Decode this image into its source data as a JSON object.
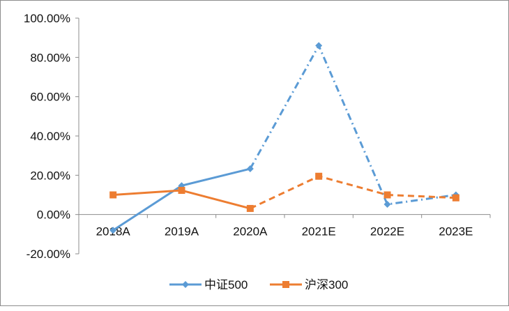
{
  "chart_data": {
    "type": "line",
    "title": "",
    "xlabel": "",
    "ylabel": "",
    "categories": [
      "2018A",
      "2019A",
      "2020A",
      "2021E",
      "2022E",
      "2023E"
    ],
    "ylim": [
      -20,
      100
    ],
    "yticks": [
      -20,
      0,
      20,
      40,
      60,
      80,
      100
    ],
    "ytick_labels": [
      "-20.00%",
      "0.00%",
      "20.00%",
      "40.00%",
      "60.00%",
      "80.00%",
      "100.00%"
    ],
    "grid": false,
    "legend_position": "bottom",
    "series": [
      {
        "name": "中证500",
        "color": "#5B9BD5",
        "marker": "diamond",
        "values": [
          -8,
          14.7,
          23.3,
          86,
          5.2,
          10
        ],
        "actual_through_index": 2,
        "forecast_style": "dash-dot"
      },
      {
        "name": "沪深300",
        "color": "#ED7D31",
        "marker": "square",
        "values": [
          10,
          12.3,
          3.1,
          19.5,
          10,
          8.5
        ],
        "actual_through_index": 2,
        "forecast_style": "dashed"
      }
    ]
  }
}
